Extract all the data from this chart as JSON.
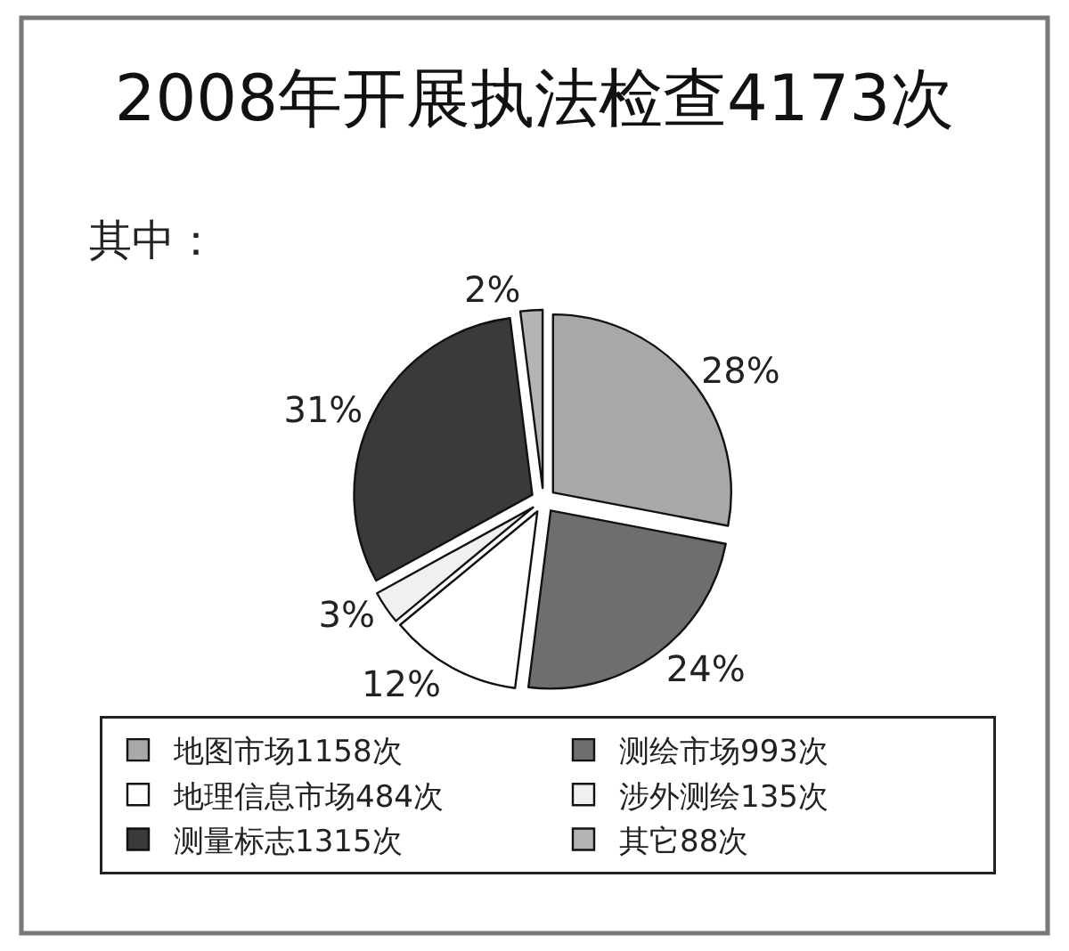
{
  "chart_data": {
    "type": "pie",
    "title": "2008年开展执法检查4173次",
    "subtitle": "其中：",
    "categories": [
      "地图市场1158次",
      "测绘市场993次",
      "地理信息市场484次",
      "涉外测绘135次",
      "测量标志1315次",
      "其它88次"
    ],
    "values": [
      28,
      24,
      12,
      3,
      31,
      2
    ],
    "colors": [
      "#a8a8a8",
      "#6e6e6e",
      "#ffffff",
      "#f0f0f0",
      "#3a3a3a",
      "#b4b4b4"
    ],
    "value_labels": [
      "28%",
      "24%",
      "12%",
      "3%",
      "31%",
      "2%"
    ],
    "legend": "bottom"
  }
}
